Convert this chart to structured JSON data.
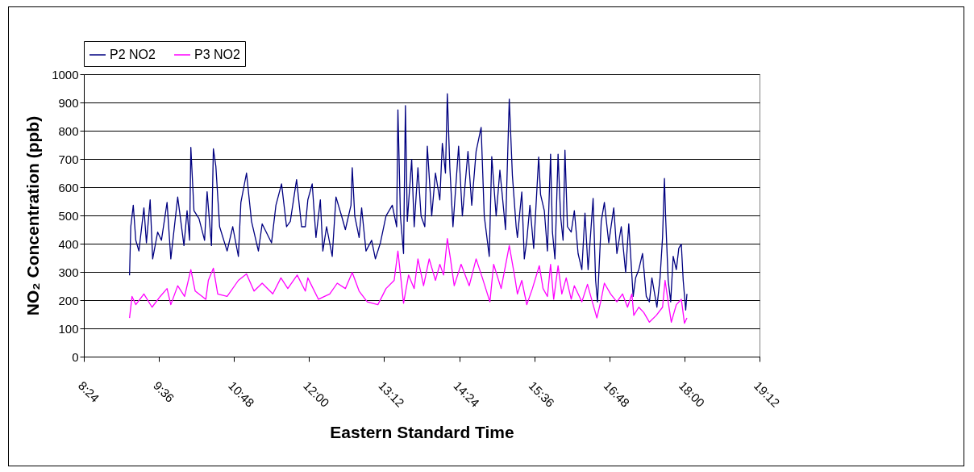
{
  "chart_data": {
    "type": "line",
    "xlabel": "Eastern Standard Time",
    "ylabel": "NO₂ Concentration (ppb)",
    "xlim": [
      8.4,
      19.2
    ],
    "xticks": [
      {
        "value": 8.4,
        "label": "8:24"
      },
      {
        "value": 9.6,
        "label": "9:36"
      },
      {
        "value": 10.8,
        "label": "10:48"
      },
      {
        "value": 12.0,
        "label": "12:00"
      },
      {
        "value": 13.2,
        "label": "13:12"
      },
      {
        "value": 14.4,
        "label": "14:24"
      },
      {
        "value": 15.6,
        "label": "15:36"
      },
      {
        "value": 16.8,
        "label": "16:48"
      },
      {
        "value": 18.0,
        "label": "18:00"
      },
      {
        "value": 19.2,
        "label": "19:12"
      }
    ],
    "ylim": [
      0,
      1000
    ],
    "yticks": [
      0,
      100,
      200,
      300,
      400,
      500,
      600,
      700,
      800,
      900,
      1000
    ],
    "grid": "y",
    "legend": "top",
    "marker": "none",
    "line_style": "solid",
    "series": [
      {
        "name": "P2 NO2",
        "color": "#000080",
        "x": [
          9.13,
          9.15,
          9.19,
          9.23,
          9.28,
          9.36,
          9.4,
          9.46,
          9.5,
          9.58,
          9.64,
          9.73,
          9.79,
          9.9,
          10.0,
          10.05,
          10.09,
          10.11,
          10.16,
          10.24,
          10.33,
          10.37,
          10.44,
          10.47,
          10.51,
          10.57,
          10.69,
          10.78,
          10.87,
          10.91,
          11.0,
          11.08,
          11.19,
          11.25,
          11.4,
          11.47,
          11.56,
          11.64,
          11.7,
          11.8,
          11.88,
          11.94,
          11.98,
          12.05,
          12.11,
          12.18,
          12.22,
          12.28,
          12.37,
          12.43,
          12.52,
          12.58,
          12.67,
          12.69,
          12.73,
          12.8,
          12.84,
          12.91,
          13.0,
          13.06,
          13.14,
          13.23,
          13.33,
          13.4,
          13.42,
          13.46,
          13.51,
          13.54,
          13.57,
          13.64,
          13.68,
          13.74,
          13.79,
          13.85,
          13.89,
          13.96,
          14.02,
          14.09,
          14.13,
          14.18,
          14.21,
          14.25,
          14.3,
          14.39,
          14.45,
          14.54,
          14.6,
          14.67,
          14.75,
          14.8,
          14.88,
          14.92,
          14.99,
          15.05,
          15.14,
          15.2,
          15.25,
          15.31,
          15.33,
          15.4,
          15.44,
          15.48,
          15.53,
          15.59,
          15.67,
          15.7,
          15.76,
          15.81,
          15.86,
          15.89,
          15.93,
          15.98,
          16.02,
          16.06,
          16.09,
          16.13,
          16.19,
          16.24,
          16.3,
          16.36,
          16.41,
          16.46,
          16.54,
          16.58,
          16.61,
          16.67,
          16.72,
          16.79,
          16.87,
          16.92,
          16.99,
          17.06,
          17.11,
          17.18,
          17.22,
          17.27,
          17.33,
          17.39,
          17.44,
          17.48,
          17.56,
          17.61,
          17.65,
          17.68,
          17.7,
          17.74,
          17.78,
          17.82,
          17.87,
          17.91,
          17.95,
          17.98,
          18.02,
          18.04
        ],
        "values": [
          288,
          460,
          536,
          412,
          374,
          527,
          403,
          555,
          346,
          441,
          412,
          546,
          346,
          565,
          393,
          517,
          412,
          741,
          517,
          489,
          412,
          584,
          393,
          736,
          674,
          460,
          374,
          460,
          355,
          546,
          650,
          479,
          374,
          470,
          403,
          536,
          612,
          460,
          479,
          627,
          460,
          460,
          555,
          612,
          422,
          555,
          374,
          460,
          355,
          565,
          498,
          450,
          536,
          669,
          498,
          422,
          527,
          374,
          412,
          346,
          403,
          498,
          536,
          460,
          874,
          498,
          365,
          889,
          479,
          698,
          460,
          669,
          498,
          460,
          745,
          498,
          650,
          555,
          755,
          650,
          931,
          669,
          460,
          745,
          498,
          727,
          536,
          727,
          812,
          498,
          355,
          708,
          498,
          660,
          450,
          912,
          641,
          460,
          422,
          583,
          346,
          412,
          536,
          383,
          707,
          574,
          517,
          374,
          717,
          441,
          346,
          717,
          498,
          412,
          731,
          460,
          441,
          517,
          365,
          308,
          508,
          308,
          560,
          270,
          194,
          479,
          546,
          403,
          527,
          365,
          460,
          298,
          470,
          213,
          279,
          308,
          365,
          213,
          194,
          279,
          175,
          279,
          422,
          631,
          489,
          270,
          194,
          355,
          308,
          384,
          398,
          270,
          165,
          222
        ]
      },
      {
        "name": "P3 NO2",
        "color": "#ff00ff",
        "x": [
          9.13,
          9.17,
          9.23,
          9.36,
          9.49,
          9.62,
          9.73,
          9.79,
          9.9,
          10.01,
          10.11,
          10.18,
          10.35,
          10.39,
          10.47,
          10.54,
          10.69,
          10.87,
          11.0,
          11.12,
          11.25,
          11.42,
          11.55,
          11.66,
          11.81,
          11.94,
          11.98,
          12.15,
          12.33,
          12.45,
          12.58,
          12.69,
          12.8,
          12.93,
          13.1,
          13.23,
          13.36,
          13.42,
          13.51,
          13.59,
          13.68,
          13.74,
          13.83,
          13.92,
          14.02,
          14.09,
          14.15,
          14.21,
          14.26,
          14.32,
          14.43,
          14.56,
          14.67,
          14.77,
          14.89,
          14.95,
          15.07,
          15.2,
          15.29,
          15.33,
          15.4,
          15.48,
          15.57,
          15.68,
          15.74,
          15.81,
          15.86,
          15.91,
          15.98,
          16.04,
          16.11,
          16.19,
          16.24,
          16.36,
          16.45,
          16.54,
          16.6,
          16.67,
          16.72,
          16.82,
          16.92,
          17.01,
          17.09,
          17.16,
          17.19,
          17.27,
          17.35,
          17.44,
          17.55,
          17.65,
          17.69,
          17.74,
          17.79,
          17.87,
          17.95,
          18.0,
          18.04
        ],
        "values": [
          137,
          213,
          184,
          222,
          175,
          213,
          241,
          184,
          251,
          213,
          308,
          232,
          203,
          270,
          313,
          222,
          213,
          270,
          293,
          232,
          260,
          222,
          279,
          241,
          289,
          232,
          279,
          203,
          222,
          260,
          241,
          298,
          232,
          194,
          184,
          241,
          270,
          374,
          189,
          289,
          241,
          346,
          251,
          346,
          270,
          327,
          289,
          418,
          346,
          251,
          327,
          251,
          346,
          279,
          194,
          327,
          241,
          393,
          279,
          222,
          270,
          184,
          241,
          322,
          241,
          213,
          327,
          203,
          322,
          222,
          279,
          203,
          251,
          194,
          256,
          184,
          137,
          203,
          260,
          222,
          194,
          222,
          175,
          222,
          146,
          175,
          156,
          122,
          146,
          175,
          270,
          194,
          122,
          184,
          203,
          118,
          137
        ]
      }
    ]
  }
}
